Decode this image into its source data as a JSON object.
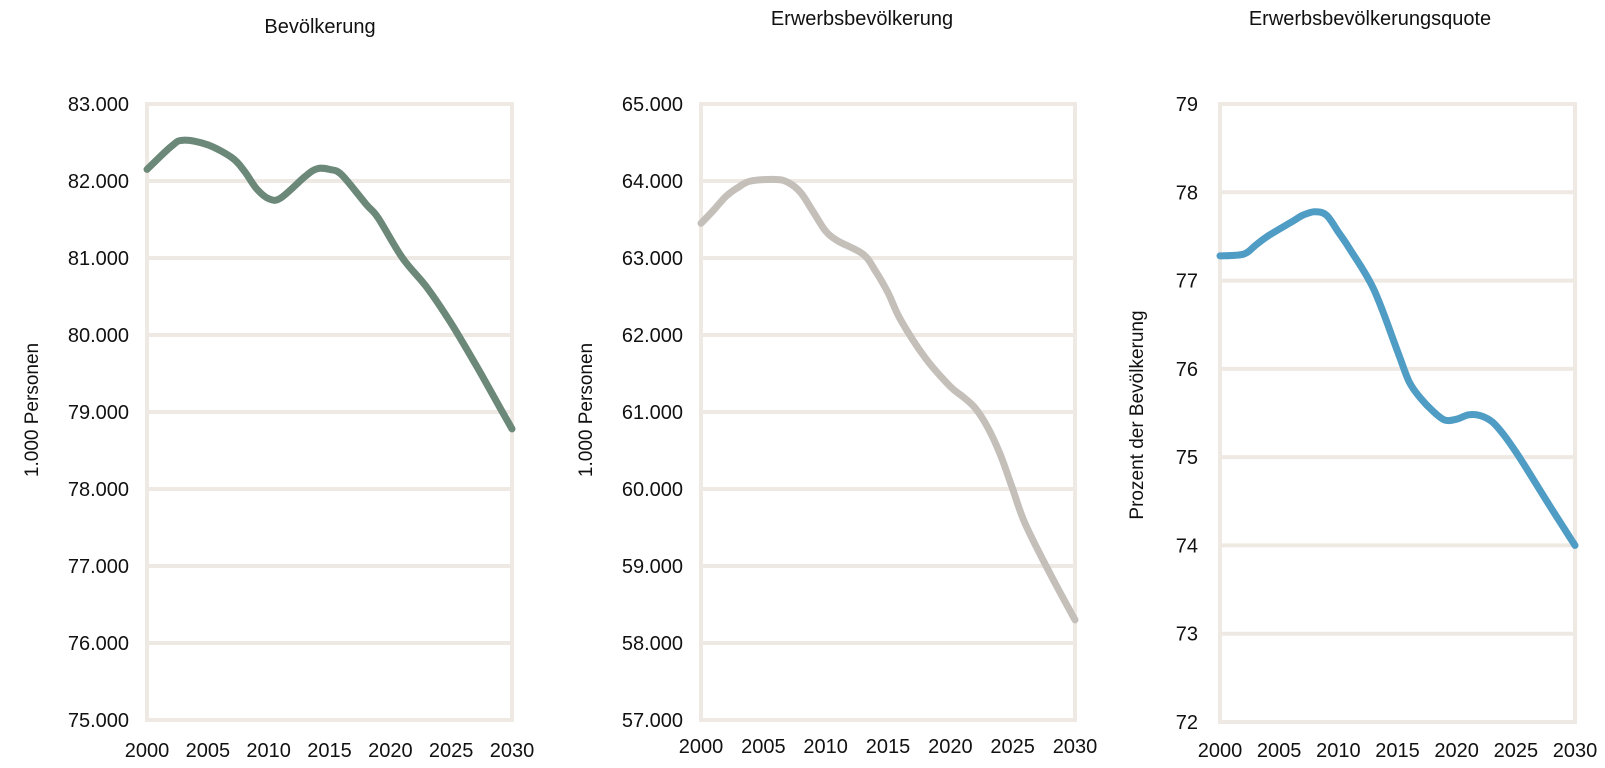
{
  "chart_data": [
    {
      "type": "line",
      "title": "Bevölkerung",
      "xlabel": "",
      "ylabel": "1.000 Personen",
      "ylim": [
        75000,
        83000
      ],
      "xlim": [
        2000,
        2030
      ],
      "grid": true,
      "legend": "none",
      "color": "#6b8878",
      "yticks": [
        "75.000",
        "76.000",
        "77.000",
        "78.000",
        "79.000",
        "80.000",
        "81.000",
        "82.000",
        "83.000"
      ],
      "xticks": [
        "2000",
        "2005",
        "2010",
        "2015",
        "2020",
        "2025",
        "2030"
      ],
      "x": [
        2000,
        2002,
        2003,
        2005,
        2007,
        2008,
        2009,
        2010,
        2011,
        2013,
        2014,
        2015,
        2016,
        2018,
        2019,
        2021,
        2023,
        2025,
        2027,
        2029,
        2030
      ],
      "y": [
        82150,
        82450,
        82530,
        82470,
        82300,
        82130,
        81900,
        81770,
        81780,
        82060,
        82160,
        82150,
        82080,
        81700,
        81520,
        81000,
        80620,
        80150,
        79620,
        79060,
        78780
      ]
    },
    {
      "type": "line",
      "title": "Erwerbsbevölkerung",
      "xlabel": "",
      "ylabel": "1.000 Personen",
      "ylim": [
        57000,
        65000
      ],
      "xlim": [
        2000,
        2030
      ],
      "grid": true,
      "legend": "none",
      "color": "#c5bfba",
      "yticks": [
        "57.000",
        "58.000",
        "59.000",
        "60.000",
        "61.000",
        "62.000",
        "63.000",
        "64.000",
        "65.000"
      ],
      "xticks": [
        "2000",
        "2005",
        "2010",
        "2015",
        "2020",
        "2025",
        "2030"
      ],
      "x": [
        2000,
        2001,
        2002,
        2003,
        2004,
        2006,
        2007,
        2008,
        2009,
        2010,
        2011,
        2013,
        2014,
        2015,
        2016,
        2018,
        2020,
        2021,
        2022,
        2023,
        2024,
        2025,
        2026,
        2028,
        2030
      ],
      "y": [
        63450,
        63620,
        63800,
        63920,
        64000,
        64020,
        63980,
        63850,
        63600,
        63350,
        63220,
        63050,
        62830,
        62550,
        62200,
        61700,
        61330,
        61200,
        61050,
        60800,
        60450,
        60000,
        59550,
        58900,
        58300
      ]
    },
    {
      "type": "line",
      "title": "Erwerbsbevölkerungsquote",
      "xlabel": "",
      "ylabel": "Prozent der Bevölkerung",
      "ylim": [
        72,
        79
      ],
      "xlim": [
        2000,
        2030
      ],
      "grid": true,
      "legend": "none",
      "color": "#4f9cc5",
      "yticks": [
        "72",
        "73",
        "74",
        "75",
        "76",
        "77",
        "78",
        "79"
      ],
      "xticks": [
        "2000",
        "2005",
        "2010",
        "2015",
        "2020",
        "2025",
        "2030"
      ],
      "x": [
        2000,
        2002,
        2003,
        2004,
        2006,
        2007,
        2008,
        2009,
        2010,
        2011,
        2013,
        2015,
        2016,
        2017,
        2018,
        2019,
        2020,
        2021,
        2022,
        2023,
        2024,
        2025,
        2026,
        2028,
        2030
      ],
      "y": [
        77.28,
        77.3,
        77.4,
        77.5,
        77.66,
        77.74,
        77.78,
        77.74,
        77.55,
        77.35,
        76.9,
        76.2,
        75.85,
        75.66,
        75.52,
        75.42,
        75.43,
        75.48,
        75.47,
        75.4,
        75.25,
        75.06,
        74.85,
        74.42,
        74.0
      ]
    }
  ]
}
